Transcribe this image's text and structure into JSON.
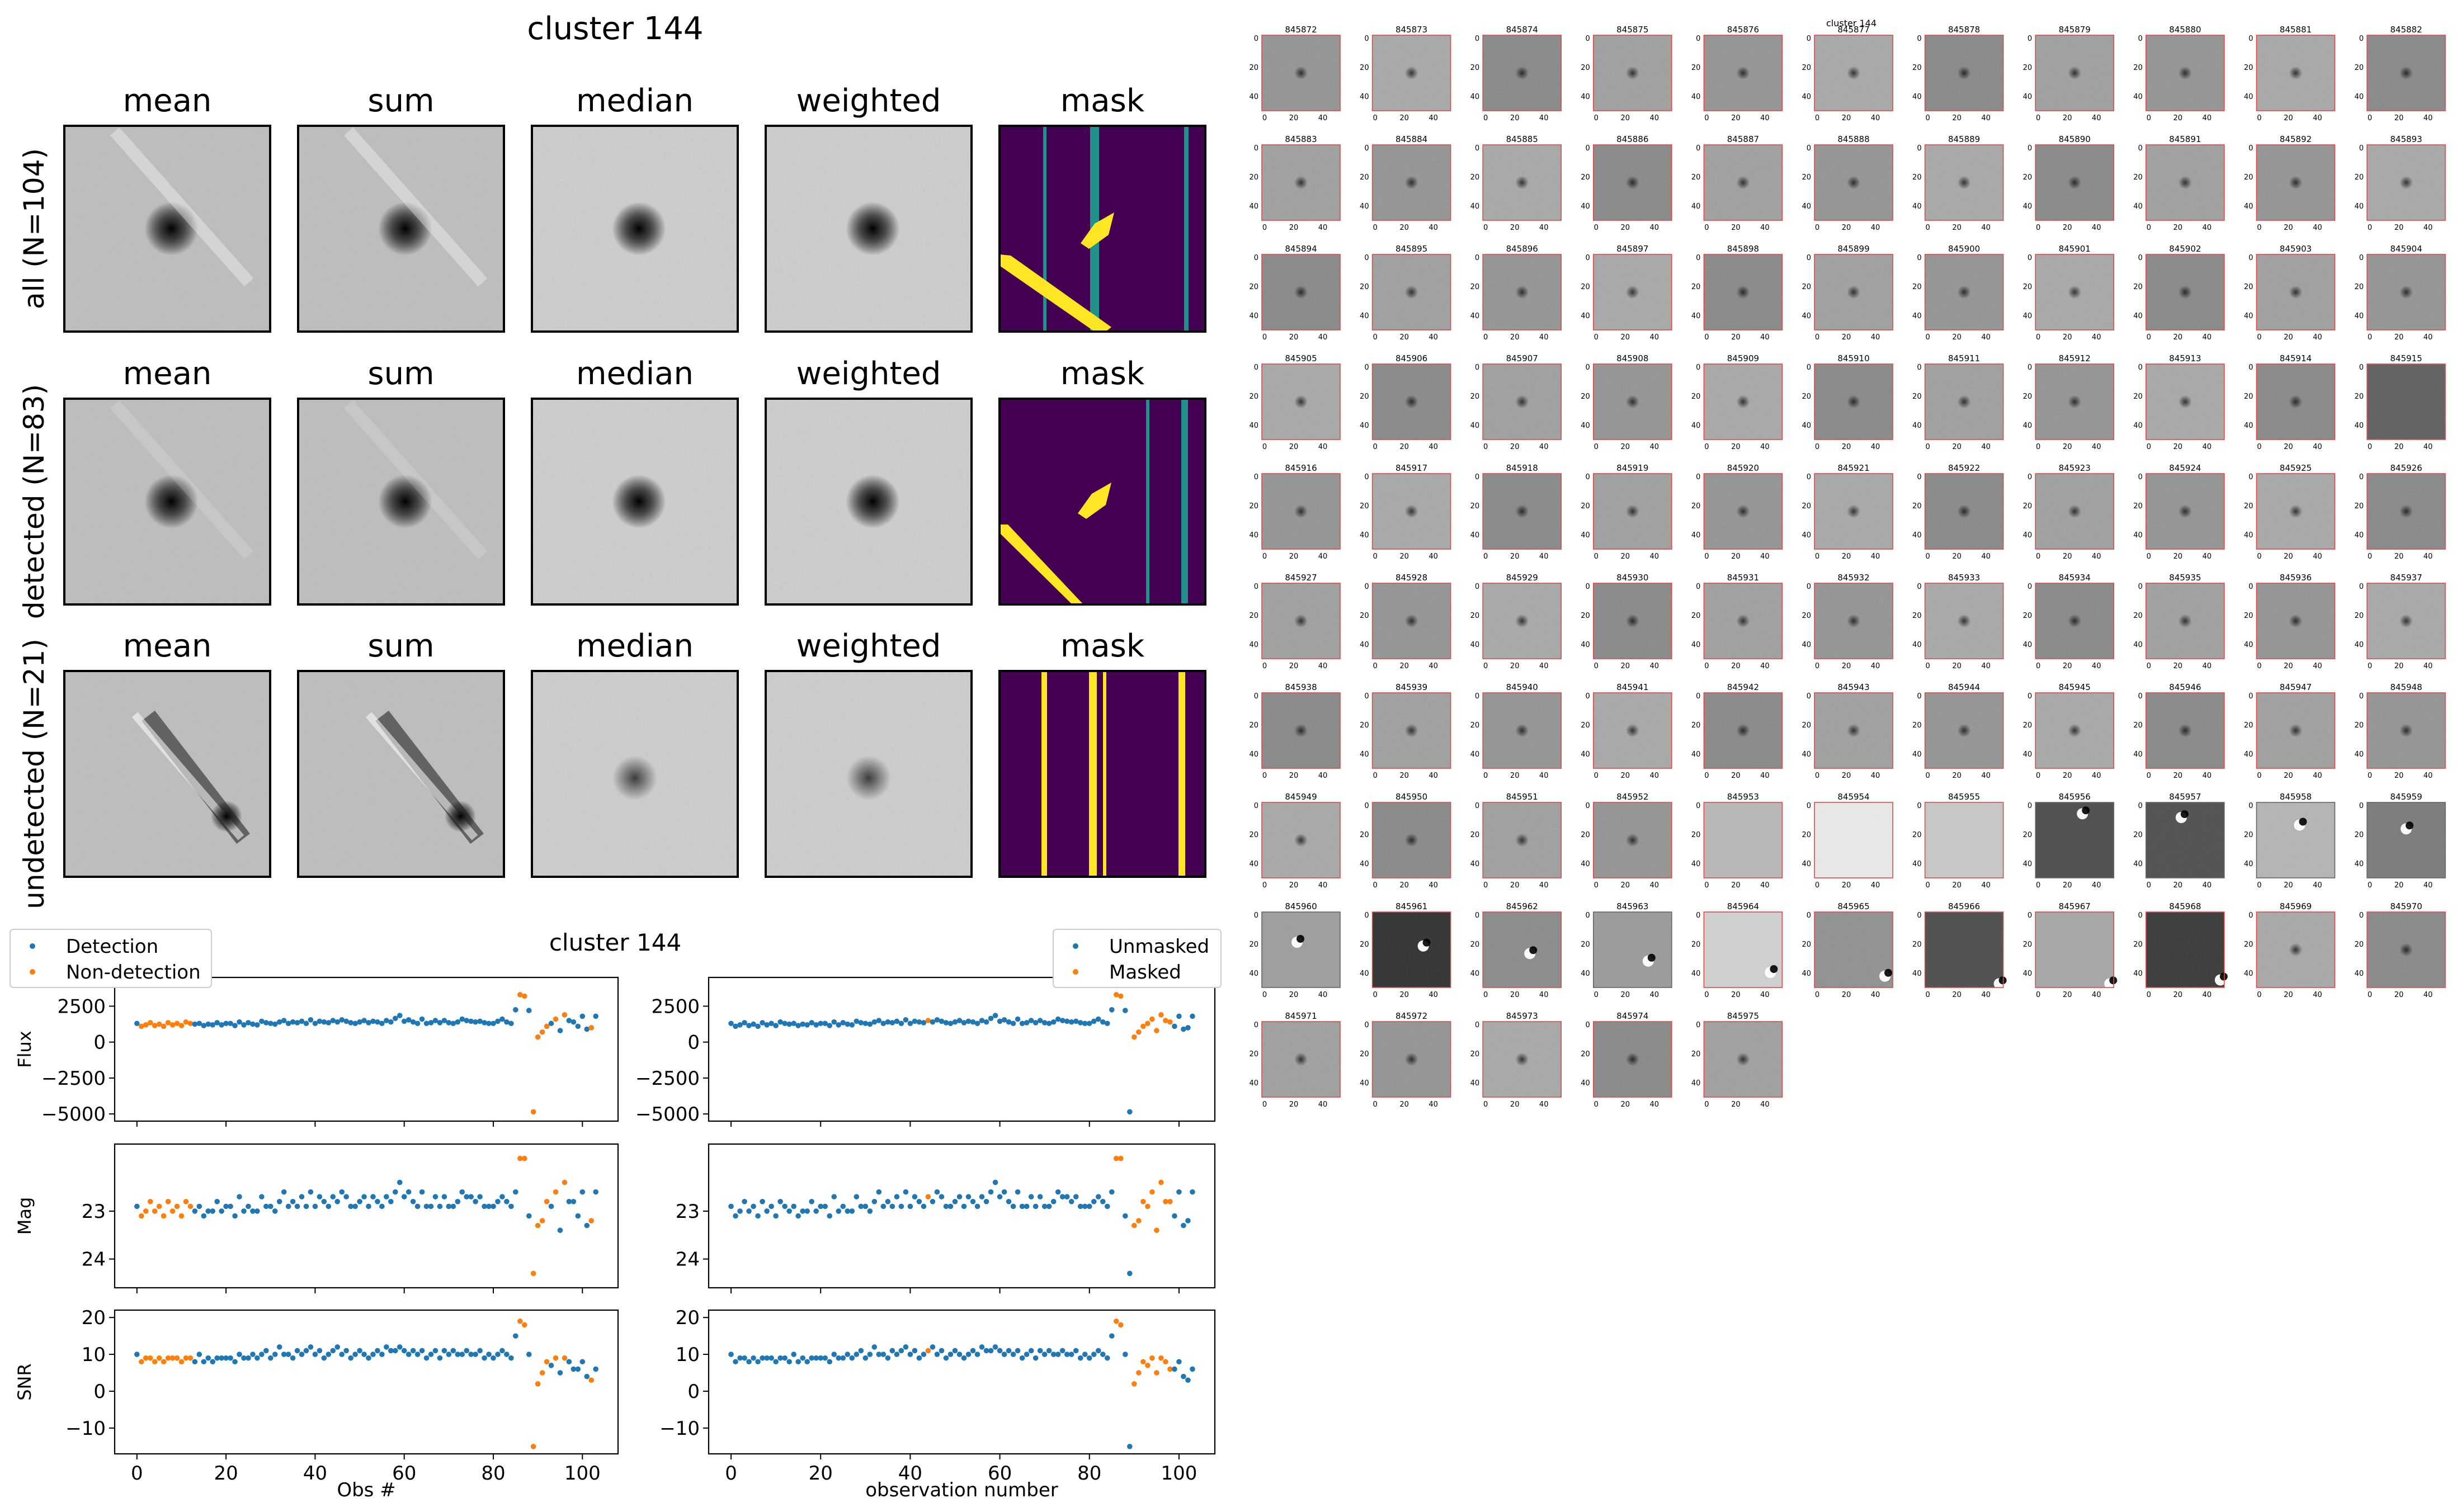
{
  "chart_data": [
    {
      "type": "image-grid",
      "title": "cluster 144",
      "column_titles": [
        "mean",
        "sum",
        "median",
        "weighted",
        "mask"
      ],
      "row_labels": [
        "all (N=104)",
        "detected (N=83)",
        "undetected (N=21)"
      ]
    },
    {
      "type": "scatter",
      "title": "cluster 144",
      "x": [
        0,
        1,
        2,
        3,
        4,
        5,
        6,
        7,
        8,
        9,
        10,
        11,
        12,
        13,
        14,
        15,
        16,
        17,
        18,
        19,
        20,
        21,
        22,
        23,
        24,
        25,
        26,
        27,
        28,
        29,
        30,
        31,
        32,
        33,
        34,
        35,
        36,
        37,
        38,
        39,
        40,
        41,
        42,
        43,
        44,
        45,
        46,
        47,
        48,
        49,
        50,
        51,
        52,
        53,
        54,
        55,
        56,
        57,
        58,
        59,
        60,
        61,
        62,
        63,
        64,
        65,
        66,
        67,
        68,
        69,
        70,
        71,
        72,
        73,
        74,
        75,
        76,
        77,
        78,
        79,
        80,
        81,
        82,
        83,
        84,
        85,
        86,
        87,
        88,
        89,
        90,
        91,
        92,
        93,
        94,
        95,
        96,
        97,
        98,
        99,
        100,
        101,
        102,
        103
      ],
      "flux": [
        1300,
        1100,
        1200,
        1350,
        1150,
        1250,
        1100,
        1350,
        1200,
        1300,
        1150,
        1400,
        1300,
        1250,
        1300,
        1150,
        1250,
        1200,
        1350,
        1200,
        1300,
        1300,
        1150,
        1400,
        1200,
        1350,
        1250,
        1200,
        1450,
        1350,
        1300,
        1250,
        1400,
        1500,
        1300,
        1400,
        1350,
        1450,
        1300,
        1550,
        1300,
        1450,
        1400,
        1350,
        1500,
        1400,
        1550,
        1450,
        1350,
        1300,
        1400,
        1500,
        1350,
        1450,
        1400,
        1300,
        1500,
        1400,
        1650,
        1850,
        1450,
        1550,
        1400,
        1300,
        1600,
        1300,
        1350,
        1500,
        1350,
        1500,
        1350,
        1300,
        1400,
        1600,
        1500,
        1450,
        1400,
        1450,
        1350,
        1300,
        1300,
        1450,
        1600,
        1400,
        1300,
        2250,
        3300,
        3200,
        2200,
        -4850,
        350,
        700,
        1100,
        1300,
        1600,
        800,
        1900,
        1500,
        1400,
        1100,
        1800,
        900,
        1000,
        1800
      ],
      "mag": [
        22.9,
        23.1,
        23.0,
        22.8,
        23.0,
        22.9,
        23.1,
        22.8,
        23.0,
        22.9,
        23.1,
        22.8,
        22.9,
        23.0,
        22.9,
        23.1,
        23.0,
        23.0,
        22.8,
        23.0,
        22.9,
        22.9,
        23.1,
        22.7,
        23.0,
        22.9,
        23.0,
        23.0,
        22.7,
        22.9,
        22.9,
        23.0,
        22.8,
        22.6,
        22.9,
        22.8,
        22.9,
        22.7,
        22.9,
        22.6,
        22.9,
        22.7,
        22.8,
        22.9,
        22.7,
        22.8,
        22.6,
        22.7,
        22.9,
        22.9,
        22.8,
        22.7,
        22.9,
        22.7,
        22.8,
        22.9,
        22.7,
        22.8,
        22.6,
        22.4,
        22.7,
        22.6,
        22.8,
        22.9,
        22.6,
        22.9,
        22.9,
        22.7,
        22.9,
        22.7,
        22.9,
        22.9,
        22.8,
        22.6,
        22.7,
        22.7,
        22.8,
        22.7,
        22.9,
        22.9,
        22.9,
        22.8,
        22.7,
        22.8,
        22.9,
        22.6,
        21.9,
        21.9,
        23.1,
        24.3,
        23.3,
        23.2,
        22.8,
        22.9,
        22.6,
        23.4,
        22.4,
        22.8,
        22.8,
        23.1,
        22.6,
        23.3,
        23.2,
        22.6
      ],
      "snr": [
        10,
        8,
        9,
        9,
        8,
        9,
        8,
        9,
        9,
        9,
        8,
        9,
        9,
        8,
        10,
        8,
        9,
        8,
        9,
        9,
        9,
        9,
        8,
        10,
        9,
        9,
        10,
        9,
        10,
        11,
        9,
        10,
        12,
        10,
        10,
        9,
        11,
        10,
        11,
        12,
        10,
        11,
        9,
        10,
        11,
        12,
        10,
        11,
        9,
        10,
        11,
        10,
        9,
        10,
        11,
        10,
        12,
        11,
        11,
        12,
        11,
        10,
        11,
        10,
        11,
        9,
        10,
        11,
        9,
        11,
        10,
        11,
        10,
        10,
        11,
        10,
        10,
        11,
        9,
        10,
        9,
        10,
        11,
        10,
        9,
        15,
        19,
        18,
        10,
        -15,
        2,
        5,
        8,
        7,
        9,
        5,
        9,
        8,
        6,
        6,
        8,
        4,
        3,
        6
      ],
      "undetected_idx": [
        1,
        2,
        3,
        4,
        5,
        6,
        7,
        8,
        9,
        10,
        11,
        12,
        86,
        87,
        89,
        90,
        91,
        92,
        94,
        96,
        102
      ],
      "masked_idx": [
        44,
        86,
        87,
        90,
        91,
        92,
        93,
        94,
        95,
        96,
        97,
        98
      ],
      "left_xlabel": "Obs #",
      "right_xlabel": "observation number",
      "ylabels": [
        "Flux",
        "Mag",
        "SNR"
      ],
      "x_ticks": [
        0,
        20,
        40,
        60,
        80,
        100
      ],
      "flux_ticks": [
        2500,
        0,
        -2500,
        -5000
      ],
      "mag_ticks": [
        23,
        24
      ],
      "snr_ticks": [
        20,
        10,
        0,
        -10
      ],
      "left_legend": [
        "Detection",
        "Non-detection"
      ],
      "right_legend": [
        "Unmasked",
        "Masked"
      ],
      "colors": {
        "blue": "#1f77b4",
        "orange": "#ff7f0e",
        "mask_bg": "#440154",
        "mask_yellow": "#fde725",
        "mask_teal": "#21918c"
      }
    },
    {
      "type": "image-grid",
      "title": "cluster 144",
      "ids": [
        "845872",
        "845873",
        "845874",
        "845875",
        "845876",
        "845877",
        "845878",
        "845879",
        "845880",
        "845881",
        "845882",
        "845883",
        "845884",
        "845885",
        "845886",
        "845887",
        "845888",
        "845889",
        "845890",
        "845891",
        "845892",
        "845893",
        "845894",
        "845895",
        "845896",
        "845897",
        "845898",
        "845899",
        "845900",
        "845901",
        "845902",
        "845903",
        "845904",
        "845905",
        "845906",
        "845907",
        "845908",
        "845909",
        "845910",
        "845911",
        "845912",
        "845913",
        "845914",
        "845915",
        "845916",
        "845917",
        "845918",
        "845919",
        "845920",
        "845921",
        "845922",
        "845923",
        "845924",
        "845925",
        "845926",
        "845927",
        "845928",
        "845929",
        "845930",
        "845931",
        "845932",
        "845933",
        "845934",
        "845935",
        "845936",
        "845937",
        "845938",
        "845939",
        "845940",
        "845941",
        "845942",
        "845943",
        "845944",
        "845945",
        "845946",
        "845947",
        "845948",
        "845949",
        "845950",
        "845951",
        "845952",
        "845953",
        "845954",
        "845955",
        "845956",
        "845957",
        "845958",
        "845959",
        "845960",
        "845961",
        "845962",
        "845963",
        "845964",
        "845965",
        "845966",
        "845967",
        "845968",
        "845969",
        "845970",
        "845971",
        "845972",
        "845973",
        "845974",
        "845975"
      ],
      "tick_labels_x": [
        "0",
        "20",
        "40"
      ],
      "tick_labels_y": [
        "0",
        "20",
        "40"
      ]
    }
  ]
}
